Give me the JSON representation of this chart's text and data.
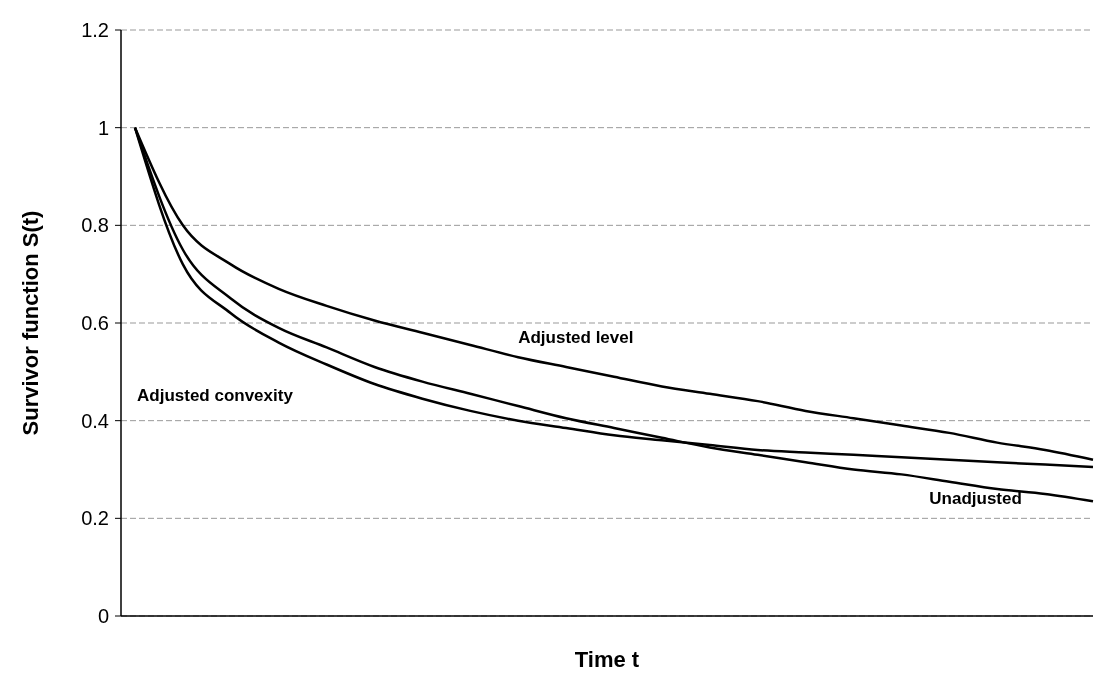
{
  "chart_data": {
    "type": "line",
    "xlabel": "Time t",
    "ylabel": "Survivor function S(t)",
    "categories": [
      null,
      null,
      null,
      null,
      null,
      null,
      null,
      null,
      null,
      null,
      null,
      null,
      null,
      null,
      null,
      null,
      null,
      null,
      null,
      null,
      null
    ],
    "series": [
      {
        "name": "Adjusted level",
        "color": "#000000",
        "values": [
          1,
          0.8,
          0.72,
          0.67,
          0.635,
          0.605,
          0.58,
          0.555,
          0.53,
          0.51,
          0.49,
          0.47,
          0.455,
          0.44,
          0.42,
          0.405,
          0.39,
          0.375,
          0.355,
          0.34,
          0.32
        ]
      },
      {
        "name": "Adjusted convexity",
        "color": "#000000",
        "values": [
          1,
          0.72,
          0.62,
          0.56,
          0.515,
          0.475,
          0.445,
          0.42,
          0.4,
          0.385,
          0.37,
          0.36,
          0.35,
          0.34,
          0.335,
          0.33,
          0.325,
          0.32,
          0.315,
          0.31,
          0.305
        ]
      },
      {
        "name": "Unadjusted",
        "color": "#000000",
        "values": [
          1,
          0.75,
          0.65,
          0.59,
          0.55,
          0.51,
          0.48,
          0.455,
          0.43,
          0.405,
          0.385,
          0.365,
          0.345,
          0.33,
          0.315,
          0.3,
          0.29,
          0.275,
          0.26,
          0.25,
          0.235
        ]
      }
    ],
    "ylim": [
      0,
      1.2
    ],
    "yticks": [
      0,
      0.2,
      0.4,
      0.6,
      0.8,
      1,
      1.2
    ],
    "grid": "y",
    "marker": "none",
    "line_style": "solid"
  }
}
